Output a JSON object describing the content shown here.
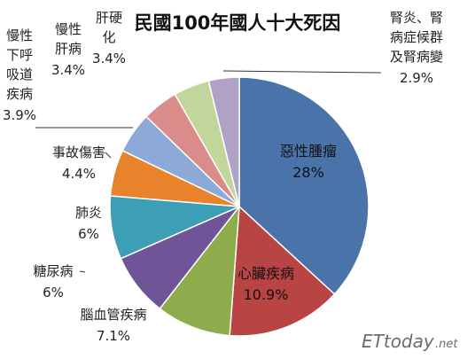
{
  "chart_data": {
    "type": "pie",
    "title": "民國100年國人十大死因",
    "slices": [
      {
        "name": "惡性腫瘤",
        "value": 28,
        "value_label": "28%",
        "color": "#4a73aa"
      },
      {
        "name": "心臟疾病",
        "value": 10.9,
        "value_label": "10.9%",
        "color": "#b94444"
      },
      {
        "name": "腦血管疾病",
        "value": 7.1,
        "value_label": "7.1%",
        "color": "#8dac4b"
      },
      {
        "name": "糖尿病",
        "value": 6,
        "value_label": "6%",
        "color": "#6f5497"
      },
      {
        "name": "肺炎",
        "value": 6,
        "value_label": "6%",
        "color": "#3c9fb5"
      },
      {
        "name": "事故傷害",
        "value": 4.4,
        "value_label": "4.4%",
        "color": "#e9832b"
      },
      {
        "name": "慢性下呼吸道疾病",
        "value": 3.9,
        "value_label": "3.9%",
        "color": "#8da9d7"
      },
      {
        "name": "慢性肝病",
        "value": 3.4,
        "value_label": "3.4%",
        "color": "#d98c8a"
      },
      {
        "name": "肝硬化",
        "value": 3.4,
        "value_label": "3.4%",
        "color": "#c2d69c"
      },
      {
        "name": "腎炎、腎病症候群及腎病變",
        "value": 2.9,
        "value_label": "2.9%",
        "color": "#b2a1c7"
      }
    ],
    "legend": "none"
  },
  "watermark": {
    "main": "ETtoday",
    "sub": ".net"
  }
}
